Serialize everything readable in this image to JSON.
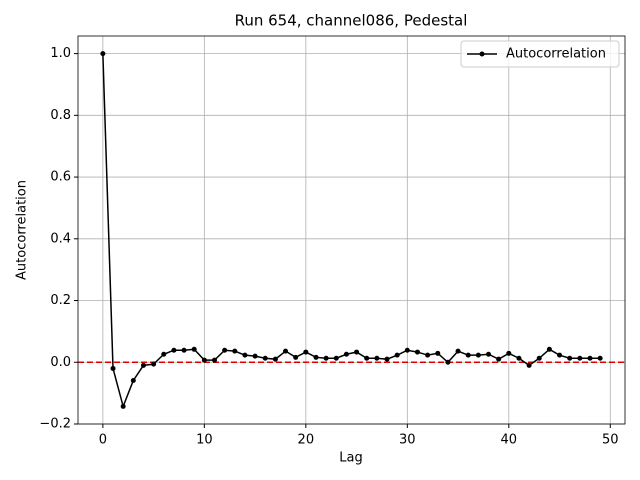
{
  "chart_data": {
    "type": "line",
    "title": "Run 654, channel086, Pedestal",
    "xlabel": "Lag",
    "ylabel": "Autocorrelation",
    "x": [
      0,
      1,
      2,
      3,
      4,
      5,
      6,
      7,
      8,
      9,
      10,
      11,
      12,
      13,
      14,
      15,
      16,
      17,
      18,
      19,
      20,
      21,
      22,
      23,
      24,
      25,
      26,
      27,
      28,
      29,
      30,
      31,
      32,
      33,
      34,
      35,
      36,
      37,
      38,
      39,
      40,
      41,
      42,
      43,
      44,
      45,
      46,
      47,
      48,
      49
    ],
    "series": [
      {
        "name": "Autocorrelation",
        "color": "#000000",
        "values": [
          1.0,
          -0.02,
          -0.143,
          -0.059,
          -0.01,
          -0.006,
          0.026,
          0.039,
          0.039,
          0.042,
          0.007,
          0.007,
          0.039,
          0.036,
          0.023,
          0.02,
          0.013,
          0.01,
          0.036,
          0.016,
          0.033,
          0.016,
          0.013,
          0.013,
          0.026,
          0.033,
          0.013,
          0.013,
          0.01,
          0.023,
          0.039,
          0.033,
          0.023,
          0.029,
          0.0,
          0.036,
          0.023,
          0.023,
          0.026,
          0.01,
          0.029,
          0.013,
          -0.01,
          0.013,
          0.042,
          0.023,
          0.013,
          0.013,
          0.013,
          0.013
        ]
      }
    ],
    "hline": {
      "value": 0,
      "color": "#e00000"
    },
    "xlim": [
      -2.45,
      51.45
    ],
    "xticks": [
      0,
      10,
      20,
      30,
      40,
      50
    ],
    "ylim": [
      -0.2,
      1.057
    ],
    "yticks": [
      {
        "value": -0.2,
        "label": "−0.2"
      },
      {
        "value": 0,
        "label": "0.0"
      },
      0.2,
      0.4,
      0.6,
      0.8,
      {
        "value": 1,
        "label": "1.0"
      }
    ],
    "grid": true,
    "legend": "upper right"
  }
}
